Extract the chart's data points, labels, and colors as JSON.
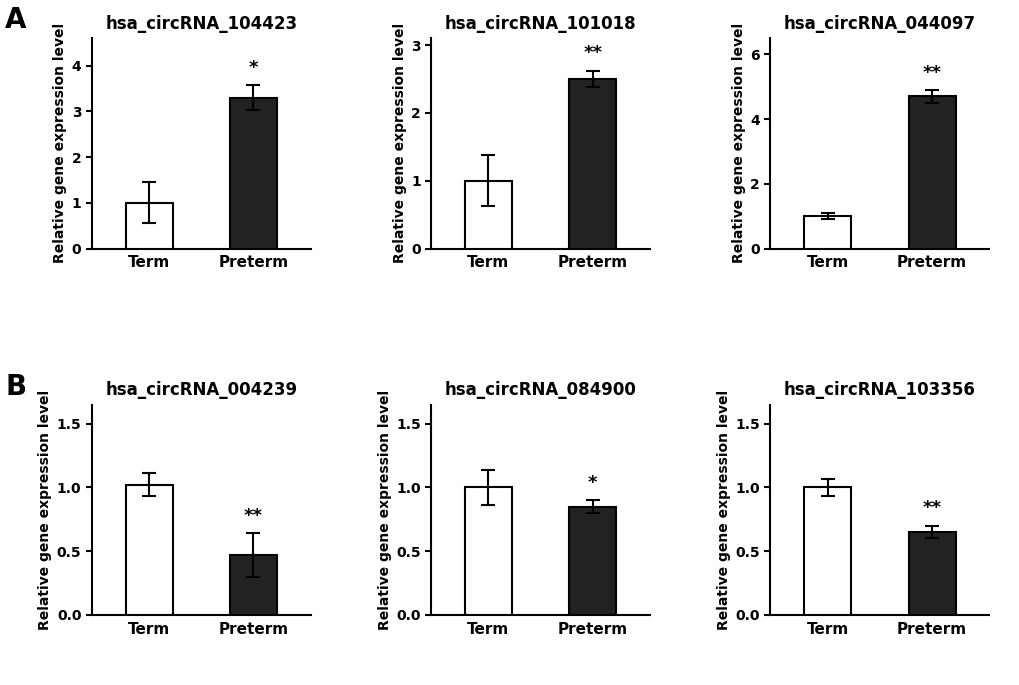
{
  "panels": [
    {
      "title": "hsa_circRNA_104423",
      "categories": [
        "Term",
        "Preterm"
      ],
      "values": [
        1.0,
        3.3
      ],
      "errors": [
        0.45,
        0.27
      ],
      "colors": [
        "white",
        "#222222"
      ],
      "ylim": [
        0,
        4.6
      ],
      "yticks": [
        0,
        1,
        2,
        3,
        4
      ],
      "ytick_labels": [
        "0",
        "1",
        "2",
        "3",
        "4"
      ],
      "significance": "*",
      "sig_on": 1,
      "row": 0,
      "col": 0
    },
    {
      "title": "hsa_circRNA_101018",
      "categories": [
        "Term",
        "Preterm"
      ],
      "values": [
        1.0,
        2.5
      ],
      "errors": [
        0.38,
        0.12
      ],
      "colors": [
        "white",
        "#222222"
      ],
      "ylim": [
        0,
        3.1
      ],
      "yticks": [
        0,
        1,
        2,
        3
      ],
      "ytick_labels": [
        "0",
        "1",
        "2",
        "3"
      ],
      "significance": "**",
      "sig_on": 1,
      "row": 0,
      "col": 1
    },
    {
      "title": "hsa_circRNA_044097",
      "categories": [
        "Term",
        "Preterm"
      ],
      "values": [
        1.0,
        4.7
      ],
      "errors": [
        0.09,
        0.2
      ],
      "colors": [
        "white",
        "#222222"
      ],
      "ylim": [
        0,
        6.5
      ],
      "yticks": [
        0,
        2,
        4,
        6
      ],
      "ytick_labels": [
        "0",
        "2",
        "4",
        "6"
      ],
      "significance": "**",
      "sig_on": 1,
      "row": 0,
      "col": 2
    },
    {
      "title": "hsa_circRNA_004239",
      "categories": [
        "Term",
        "Preterm"
      ],
      "values": [
        1.02,
        0.47
      ],
      "errors": [
        0.09,
        0.17
      ],
      "colors": [
        "white",
        "#222222"
      ],
      "ylim": [
        0,
        1.65
      ],
      "yticks": [
        0.0,
        0.5,
        1.0,
        1.5
      ],
      "ytick_labels": [
        "0.0",
        "0.5",
        "1.0",
        "1.5"
      ],
      "significance": "**",
      "sig_on": 1,
      "row": 1,
      "col": 0
    },
    {
      "title": "hsa_circRNA_084900",
      "categories": [
        "Term",
        "Preterm"
      ],
      "values": [
        1.0,
        0.85
      ],
      "errors": [
        0.14,
        0.05
      ],
      "colors": [
        "white",
        "#222222"
      ],
      "ylim": [
        0,
        1.65
      ],
      "yticks": [
        0.0,
        0.5,
        1.0,
        1.5
      ],
      "ytick_labels": [
        "0.0",
        "0.5",
        "1.0",
        "1.5"
      ],
      "significance": "*",
      "sig_on": 1,
      "row": 1,
      "col": 1
    },
    {
      "title": "hsa_circRNA_103356",
      "categories": [
        "Term",
        "Preterm"
      ],
      "values": [
        1.0,
        0.65
      ],
      "errors": [
        0.07,
        0.05
      ],
      "colors": [
        "white",
        "#222222"
      ],
      "ylim": [
        0,
        1.65
      ],
      "yticks": [
        0.0,
        0.5,
        1.0,
        1.5
      ],
      "ytick_labels": [
        "0.0",
        "0.5",
        "1.0",
        "1.5"
      ],
      "significance": "**",
      "sig_on": 1,
      "row": 1,
      "col": 2
    }
  ],
  "ylabel": "Relative gene expression level",
  "bar_width": 0.45,
  "background_color": "#ffffff",
  "edge_color": "#000000",
  "label_A": "A",
  "label_B": "B",
  "label_fontsize": 20,
  "title_fontsize": 12,
  "ylabel_fontsize": 10,
  "xtick_fontsize": 11,
  "ytick_fontsize": 10,
  "sig_fontsize": 13
}
